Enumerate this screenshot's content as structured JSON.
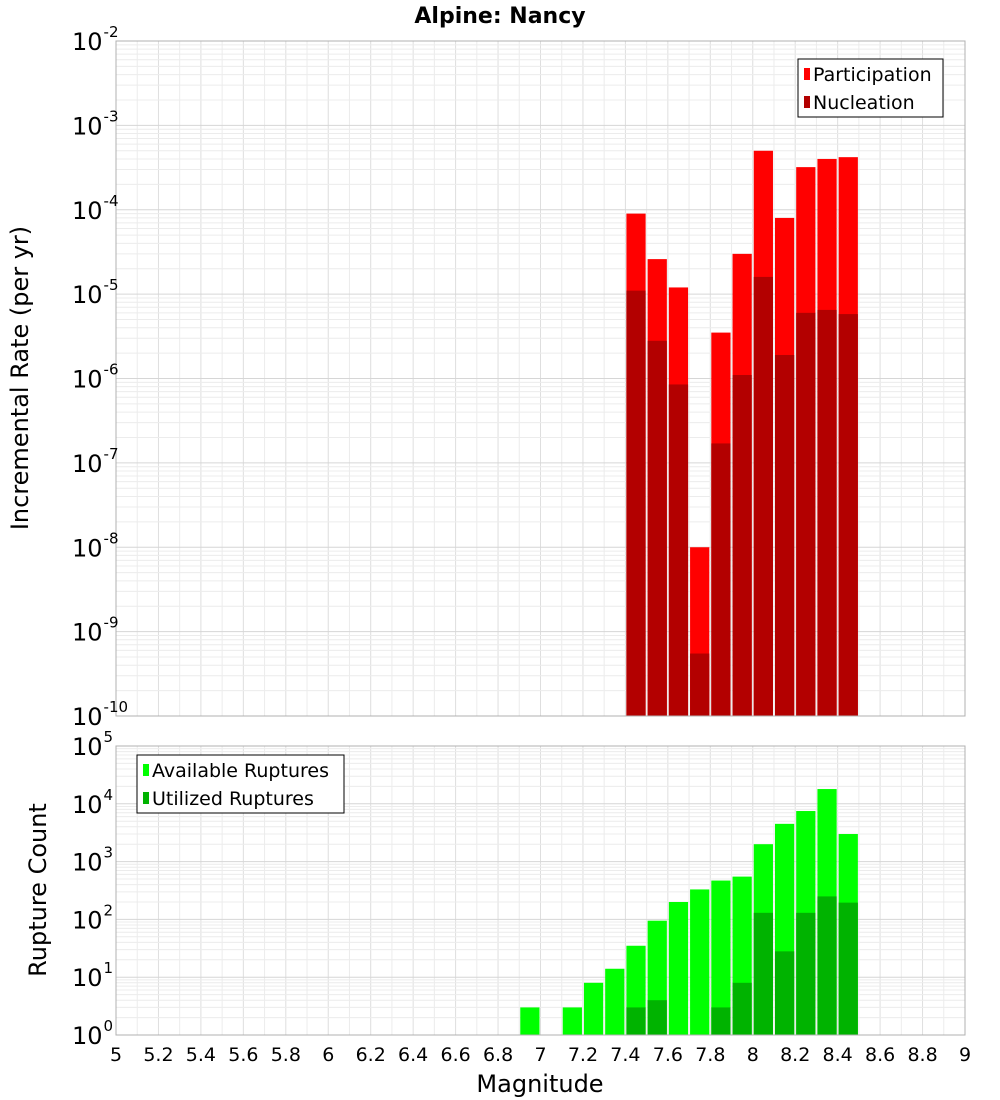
{
  "chart_data": [
    {
      "type": "bar",
      "title": "Alpine: Nancy",
      "xlabel": "",
      "ylabel": "Incremental Rate (per yr)",
      "y_scale": "log",
      "ylim_exponents": [
        -10,
        -2
      ],
      "xlim": [
        5,
        9
      ],
      "bar_width": 0.1,
      "grid": true,
      "legend_position": "top-right",
      "x": [
        7.45,
        7.55,
        7.65,
        7.75,
        7.85,
        7.95,
        8.05,
        8.15,
        8.25,
        8.35,
        8.45
      ],
      "series": [
        {
          "name": "Participation",
          "color": "#ff0000",
          "values": [
            9e-05,
            2.6e-05,
            1.2e-05,
            1e-08,
            3.5e-06,
            3e-05,
            0.0005,
            8e-05,
            0.00032,
            0.0004,
            0.00042
          ]
        },
        {
          "name": "Nucleation",
          "color": "#b30000",
          "values": [
            1.1e-05,
            2.8e-06,
            8.5e-07,
            5.5e-10,
            1.7e-07,
            1.1e-06,
            1.6e-05,
            1.9e-06,
            6e-06,
            6.5e-06,
            5.8e-06
          ]
        }
      ]
    },
    {
      "type": "bar",
      "title": "",
      "xlabel": "Magnitude",
      "ylabel": "Rupture Count",
      "y_scale": "log",
      "ylim_exponents": [
        0,
        5
      ],
      "xlim": [
        5,
        9
      ],
      "bar_width": 0.1,
      "grid": true,
      "legend_position": "top-left",
      "x": [
        6.55,
        6.95,
        7.05,
        7.15,
        7.25,
        7.35,
        7.45,
        7.55,
        7.65,
        7.75,
        7.85,
        7.95,
        8.05,
        8.15,
        8.25,
        8.35,
        8.45
      ],
      "series": [
        {
          "name": "Available Ruptures",
          "color": "#00ff00",
          "values": [
            1,
            3,
            1,
            3,
            8,
            14,
            35,
            95,
            200,
            330,
            470,
            550,
            2000,
            4500,
            7500,
            18000,
            3000
          ]
        },
        {
          "name": "Utilized Ruptures",
          "color": "#00b300",
          "values": [
            null,
            null,
            null,
            null,
            null,
            null,
            3,
            4,
            1,
            1,
            3,
            8,
            130,
            28,
            130,
            250,
            195
          ]
        }
      ]
    }
  ],
  "x_tick_labels": [
    "5",
    "5.2",
    "5.4",
    "5.6",
    "5.8",
    "6",
    "6.2",
    "6.4",
    "6.6",
    "6.8",
    "7",
    "7.2",
    "7.4",
    "7.6",
    "7.8",
    "8",
    "8.2",
    "8.4",
    "8.6",
    "8.8",
    "9"
  ],
  "log_base_label": "10"
}
